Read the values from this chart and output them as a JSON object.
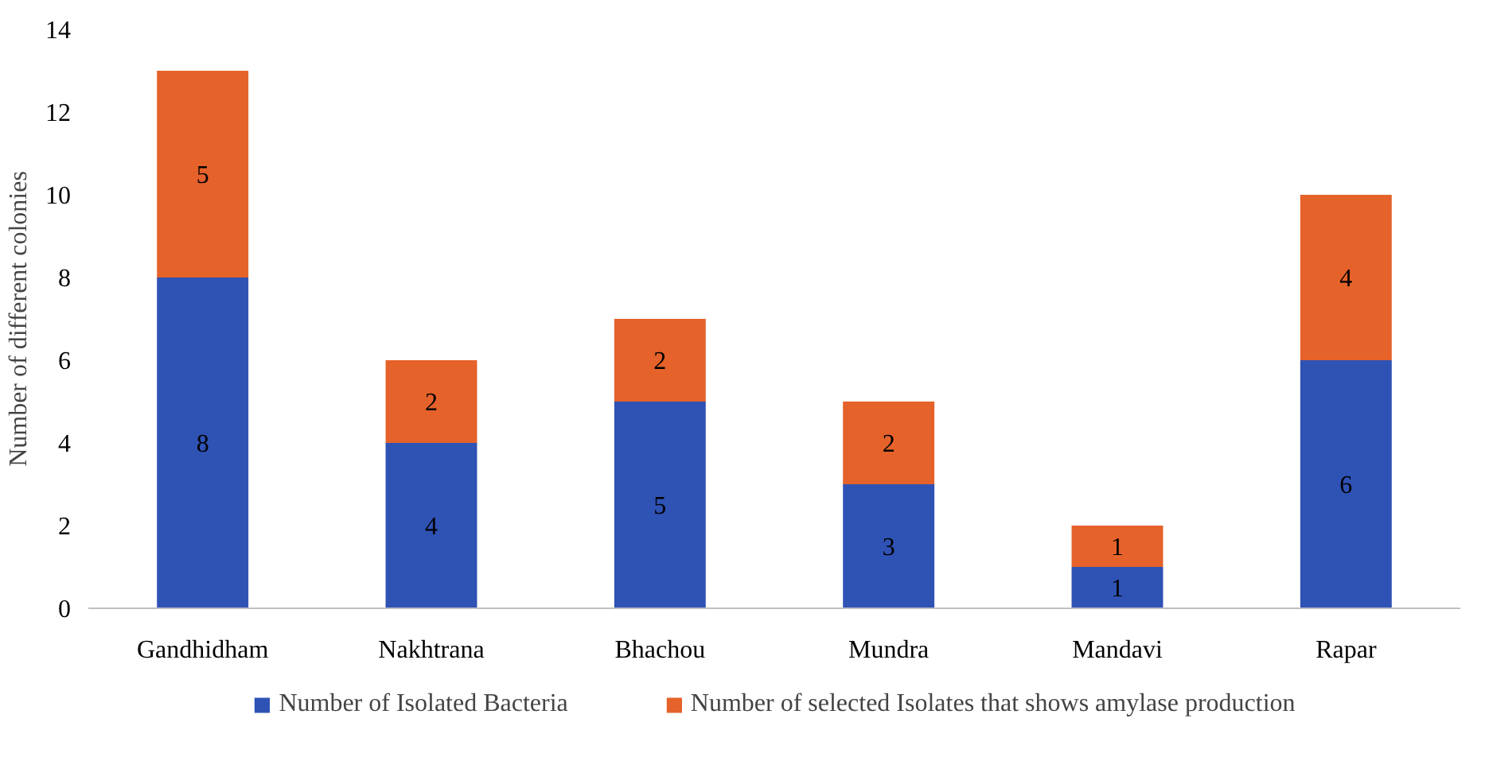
{
  "chart_data": {
    "type": "bar",
    "stacked": true,
    "ylabel": "Number of different colonies",
    "categories": [
      "Gandhidham",
      "Nakhtrana",
      "Bhachou",
      "Mundra",
      "Mandavi",
      "Rapar"
    ],
    "series": [
      {
        "name": "Number of Isolated Bacteria",
        "color": "#2f52b5",
        "values": [
          8,
          4,
          5,
          3,
          1,
          6
        ]
      },
      {
        "name": "Number of selected Isolates that shows amylase production",
        "color": "#e5622a",
        "values": [
          5,
          2,
          2,
          2,
          1,
          4
        ]
      }
    ],
    "ylim": [
      0,
      14
    ],
    "yticks": [
      0,
      2,
      4,
      6,
      8,
      10,
      12,
      14
    ],
    "grid": false,
    "legend": "bottom",
    "data_labels": true
  }
}
